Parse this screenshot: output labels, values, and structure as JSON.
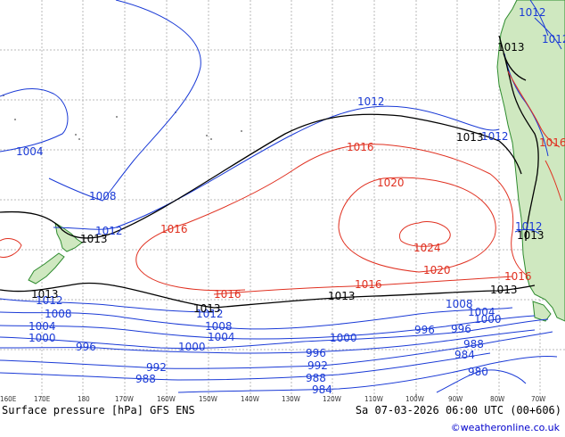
{
  "footer": {
    "left": "Surface pressure [hPa] GFS ENS",
    "right": "Sa 07-03-2026 06:00 UTC (00+606)",
    "credit": "©weatheronline.co.uk"
  },
  "colors": {
    "blue": "#1a3ad6",
    "black": "#000000",
    "red": "#e03020",
    "land": "#cfe8c0",
    "land_border": "#2e8b2e",
    "grid": "#b8b8b8"
  },
  "longitude_ticks": [
    "160E",
    "170E",
    "180",
    "170W",
    "160W",
    "150W",
    "140W",
    "130W",
    "120W",
    "110W",
    "100W",
    "90W",
    "80W",
    "70W"
  ],
  "isobar_labels": {
    "blue": [
      "1012",
      "1004",
      "1008",
      "1012",
      "1012",
      "1012",
      "1008",
      "1004",
      "1000",
      "996",
      "1012",
      "1008",
      "1004",
      "1000",
      "996",
      "992",
      "988",
      "1000",
      "996",
      "992",
      "988",
      "984",
      "1008",
      "1004",
      "1000",
      "996",
      "988",
      "984",
      "980",
      "1012",
      "1012",
      "1012"
    ],
    "black": [
      "1013",
      "1013",
      "1013",
      "1013",
      "1013",
      "1013",
      "1013",
      "1013"
    ],
    "red": [
      "1016",
      "1020",
      "1016",
      "1024",
      "1020",
      "1016",
      "1016",
      "1016",
      "1016"
    ]
  }
}
